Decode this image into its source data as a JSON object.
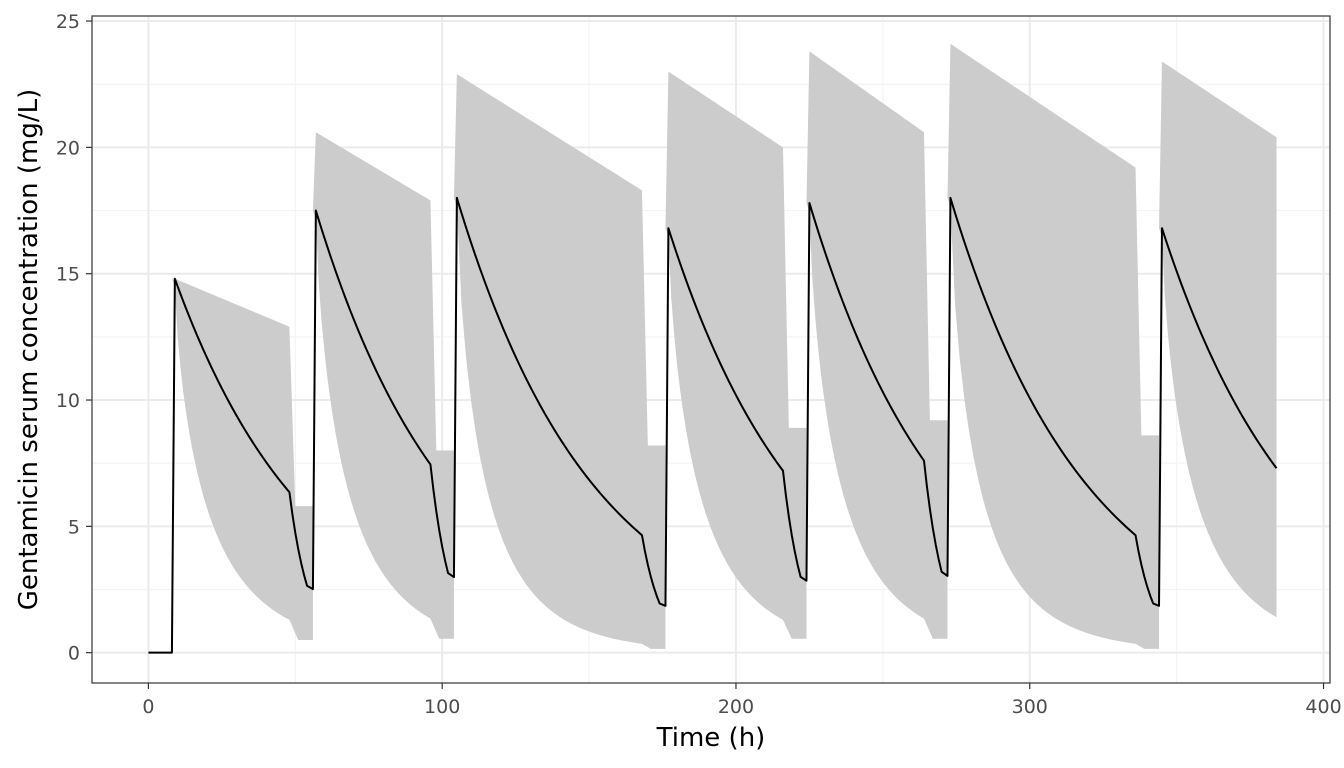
{
  "chart_data": {
    "type": "line",
    "title": "",
    "xlabel": "Time (h)",
    "ylabel": "Gentamicin serum concentration (mg/L)",
    "xlim": [
      -19.2,
      402.2
    ],
    "ylim": [
      -1.2,
      25.2
    ],
    "x_ticks": [
      0,
      100,
      200,
      300,
      400
    ],
    "y_ticks": [
      0,
      5,
      10,
      15,
      20,
      25
    ],
    "grid": true,
    "legend": "none",
    "colors": {
      "line": "#000000",
      "band": "#cccccc",
      "grid_major": "#ebebeb",
      "grid_minor": "#f3f3f3",
      "panel_border": "#333333"
    },
    "doses": [
      {
        "start": 8,
        "end": 56,
        "peak": 14.8,
        "trough_early": 6.35,
        "trough": 2.65,
        "band_upper_start": 14.8,
        "band_upper_end": 12.9,
        "band_upper_trough": 5.8,
        "band_lower_end": 1.3,
        "band_lower_trough": 0.5
      },
      {
        "start": 56,
        "end": 104,
        "peak": 17.5,
        "trough_early": 7.45,
        "trough": 3.15,
        "band_upper_start": 20.6,
        "band_upper_end": 17.9,
        "band_upper_trough": 8.0,
        "band_lower_end": 1.35,
        "band_lower_trough": 0.55
      },
      {
        "start": 104,
        "end": 176,
        "peak": 18.0,
        "trough_early": 4.65,
        "trough": 1.95,
        "band_upper_start": 22.9,
        "band_upper_end": 18.3,
        "band_upper_trough": 8.2,
        "band_lower_end": 0.35,
        "band_lower_trough": 0.15
      },
      {
        "start": 176,
        "end": 224,
        "peak": 16.8,
        "trough_early": 7.2,
        "trough": 3.0,
        "band_upper_start": 23.0,
        "band_upper_end": 20.0,
        "band_upper_trough": 8.9,
        "band_lower_end": 1.3,
        "band_lower_trough": 0.55
      },
      {
        "start": 224,
        "end": 272,
        "peak": 17.8,
        "trough_early": 7.6,
        "trough": 3.2,
        "band_upper_start": 23.8,
        "band_upper_end": 20.6,
        "band_upper_trough": 9.2,
        "band_lower_end": 1.35,
        "band_lower_trough": 0.55
      },
      {
        "start": 272,
        "end": 344,
        "peak": 18.0,
        "trough_early": 4.65,
        "trough": 1.95,
        "band_upper_start": 24.1,
        "band_upper_end": 19.2,
        "band_upper_trough": 8.6,
        "band_lower_end": 0.35,
        "band_lower_trough": 0.15
      },
      {
        "start": 344,
        "end": 384,
        "peak": 16.8,
        "trough_early": 7.3,
        "trough": 7.3,
        "band_upper_start": 23.4,
        "band_upper_end": 20.4,
        "band_upper_trough": 20.4,
        "band_lower_end": 1.4,
        "band_lower_trough": 1.4
      }
    ],
    "baseline": {
      "x_start": 0,
      "x_end": 8,
      "y": 0
    },
    "infusion_duration": 1
  }
}
